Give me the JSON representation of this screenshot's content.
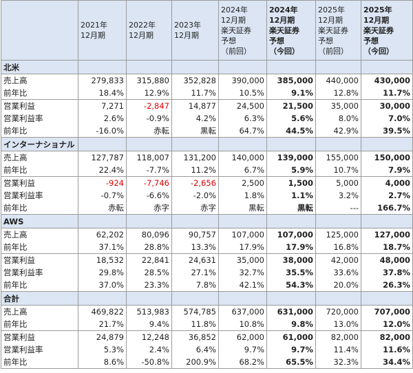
{
  "table": {
    "header": [
      [
        "2021年",
        "12月期"
      ],
      [
        "2022年",
        "12月期"
      ],
      [
        "2023年",
        "12月期"
      ],
      [
        "2024年",
        "12月期",
        "楽天証券",
        "予想",
        "（前回）"
      ],
      [
        "2024年",
        "12月期",
        "楽天証券",
        "予想",
        "（今回）"
      ],
      [
        "2025年",
        "12月期",
        "楽天証券",
        "予想",
        "（前回）"
      ],
      [
        "2025年",
        "12月期",
        "楽天証券",
        "予想",
        "（今回）"
      ]
    ],
    "bold_columns": [
      4,
      6
    ],
    "negative_color": "#e00000",
    "sections": [
      {
        "title": "北米",
        "rows": [
          {
            "label": "売上高",
            "values": [
              "279,833",
              "315,880",
              "352,828",
              "390,000",
              "385,000",
              "440,000",
              "430,000"
            ]
          },
          {
            "label": "前年比",
            "values": [
              "18.4%",
              "12.9%",
              "11.7%",
              "10.5%",
              "9.1%",
              "12.8%",
              "11.7%"
            ]
          },
          {
            "label": "営業利益",
            "negative_red": true,
            "values": [
              "7,271",
              "-2,847",
              "14,877",
              "24,500",
              "21,500",
              "35,000",
              "30,000"
            ]
          },
          {
            "label": "営業利益率",
            "values": [
              "2.6%",
              "-0.9%",
              "4.2%",
              "6.3%",
              "5.6%",
              "8.0%",
              "7.0%"
            ]
          },
          {
            "label": "前年比",
            "values": [
              "-16.0%",
              "赤転",
              "黒転",
              "64.7%",
              "44.5%",
              "42.9%",
              "39.5%"
            ]
          }
        ]
      },
      {
        "title": "インターナショナル",
        "rows": [
          {
            "label": "売上高",
            "values": [
              "127,787",
              "118,007",
              "131,200",
              "140,000",
              "139,000",
              "155,000",
              "150,000"
            ]
          },
          {
            "label": "前年比",
            "values": [
              "22.4%",
              "-7.7%",
              "11.2%",
              "6.7%",
              "5.9%",
              "10.7%",
              "7.9%"
            ]
          },
          {
            "label": "営業利益",
            "negative_red": true,
            "values": [
              "-924",
              "-7,746",
              "-2,656",
              "2,500",
              "1,500",
              "5,000",
              "4,000"
            ]
          },
          {
            "label": "営業利益率",
            "values": [
              "-0.7%",
              "-6.6%",
              "-2.0%",
              "1.8%",
              "1.1%",
              "3.2%",
              "2.7%"
            ]
          },
          {
            "label": "前年比",
            "values": [
              "赤転",
              "赤字",
              "赤字",
              "黒転",
              "黒転",
              "---",
              "166.7%"
            ]
          }
        ]
      },
      {
        "title": "AWS",
        "rows": [
          {
            "label": "売上高",
            "values": [
              "62,202",
              "80,096",
              "90,757",
              "107,000",
              "107,000",
              "125,000",
              "127,000"
            ]
          },
          {
            "label": "前年比",
            "values": [
              "37.1%",
              "28.8%",
              "13.3%",
              "17.9%",
              "17.9%",
              "16.8%",
              "18.7%"
            ]
          },
          {
            "label": "営業利益",
            "negative_red": true,
            "values": [
              "18,532",
              "22,841",
              "24,631",
              "35,000",
              "38,000",
              "42,000",
              "48,000"
            ]
          },
          {
            "label": "営業利益率",
            "values": [
              "29.8%",
              "28.5%",
              "27.1%",
              "32.7%",
              "35.5%",
              "33.6%",
              "37.8%"
            ]
          },
          {
            "label": "前年比",
            "values": [
              "37.0%",
              "23.3%",
              "7.8%",
              "42.1%",
              "54.3%",
              "20.0%",
              "26.3%"
            ]
          }
        ]
      },
      {
        "title": "合計",
        "rows": [
          {
            "label": "売上高",
            "values": [
              "469,822",
              "513,983",
              "574,785",
              "637,000",
              "631,000",
              "720,000",
              "707,000"
            ]
          },
          {
            "label": "前年比",
            "values": [
              "21.7%",
              "9.4%",
              "11.8%",
              "10.8%",
              "9.8%",
              "13.0%",
              "12.0%"
            ]
          },
          {
            "label": "営業利益",
            "negative_red": true,
            "values": [
              "24,879",
              "12,248",
              "36,852",
              "62,000",
              "61,000",
              "82,000",
              "82,000"
            ]
          },
          {
            "label": "営業利益率",
            "values": [
              "5.3%",
              "2.4%",
              "6.4%",
              "9.7%",
              "9.7%",
              "11.4%",
              "11.6%"
            ]
          },
          {
            "label": "前年比",
            "values": [
              "8.6%",
              "-50.8%",
              "200.9%",
              "68.2%",
              "65.5%",
              "32.3%",
              "34.4%"
            ]
          }
        ]
      }
    ]
  }
}
